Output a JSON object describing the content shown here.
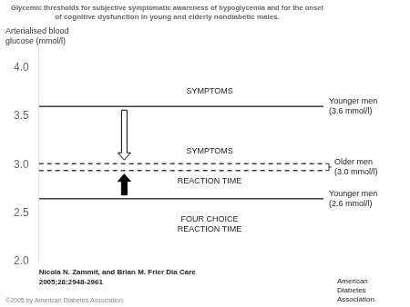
{
  "chart_data": {
    "type": "line",
    "title": [
      "Glycemic thresholds for subjective symptomatic awareness of hypoglycemia and for the onset",
      "of cognitive dysfunction in young and elderly nondiabetic males."
    ],
    "ylabel": [
      "Arterialised blood",
      "glucose (mmol/l)"
    ],
    "ylim": [
      2.0,
      4.2
    ],
    "yticks": [
      {
        "value": 2.0,
        "label": "2.0"
      },
      2.5,
      {
        "value": 3.0,
        "label": "3.0"
      },
      3.5,
      {
        "value": 4.0,
        "label": "4.0"
      }
    ],
    "grid": false,
    "tick_labels": "y",
    "series": [
      {
        "name": "Younger men (3.6 mmol/l)",
        "color": "#404040",
        "line_style": "solid",
        "values": [
          3.6
        ]
      },
      {
        "name": "Older men (3.0 mmol/l)",
        "color": "#404040",
        "line_style": "dashed",
        "values": [
          3.01,
          2.94
        ]
      },
      {
        "name": "Younger men (2.6 mmol/l)",
        "color": "#404040",
        "line_style": "solid",
        "values": [
          2.65
        ]
      }
    ],
    "annotations": [
      {
        "text": "SYMPTOMS",
        "y": 3.76
      },
      {
        "text": "SYMPTOMS",
        "y": 3.14
      },
      {
        "text": "REACTION TIME",
        "y": 2.83
      },
      {
        "text": "FOUR CHOICE",
        "y": 2.44
      },
      {
        "text": "REACTION TIME",
        "y": 2.33
      }
    ],
    "source": "Nicola N. Zammit, and Brian M. Frier Dia Care\n2005;28:2948-2961",
    "copyright": "©2005 by American Diabetes Association",
    "logo": "American\nDiabetes\nAssociation."
  }
}
